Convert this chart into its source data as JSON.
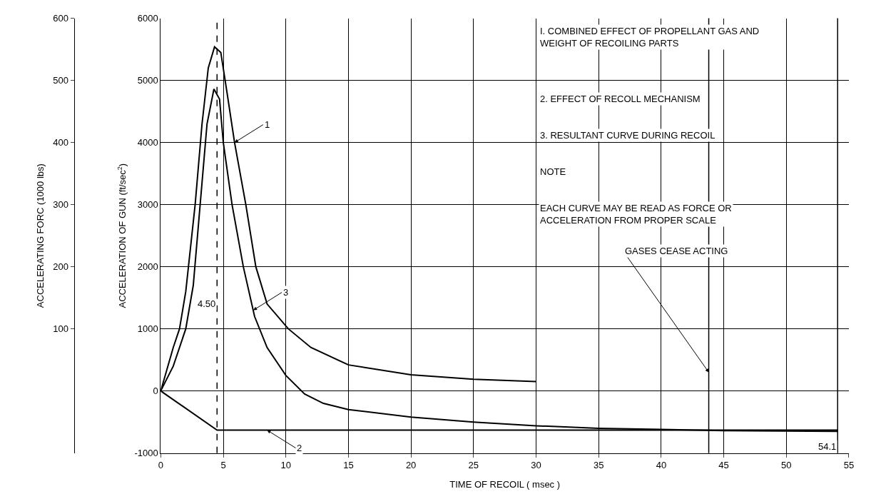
{
  "chart_data": {
    "type": "line",
    "xlabel": "TIME OF RECOIL ( msec )",
    "ylabel": "ACCELERATION OF GUN (ft/sec$^{2}$)",
    "y2label": "ACCELERATING FORC (1000 lbs)",
    "xlim": [
      0,
      55
    ],
    "xticks": [
      0,
      5,
      10,
      15,
      20,
      25,
      30,
      35,
      40,
      45,
      50,
      55
    ],
    "ylim": [
      -1000,
      6000
    ],
    "yticks": [
      -1000,
      0,
      1000,
      2000,
      3000,
      4000,
      5000,
      6000
    ],
    "y2lim": [
      -100,
      600
    ],
    "y2ticks": [
      100,
      200,
      300,
      400,
      500,
      600
    ],
    "grid": true,
    "marker": "none",
    "line_style": "solid",
    "series": [
      {
        "color": "#000000",
        "x": [
          0,
          0.5,
          1,
          1.5,
          2,
          2.75,
          3.3,
          3.8,
          4.3,
          4.8,
          5.3,
          5.9,
          6.8,
          7.6,
          8.5,
          10.2,
          12,
          15,
          20,
          25,
          30
        ],
        "values": [
          0,
          350,
          700,
          1000,
          1600,
          3000,
          4300,
          5200,
          5540,
          5450,
          4800,
          4000,
          3000,
          2000,
          1400,
          1000,
          700,
          420,
          260,
          190,
          150
        ]
      },
      {
        "color": "#000000",
        "x": [
          0,
          4.5,
          54.1
        ],
        "values": [
          0,
          -630,
          -630
        ]
      },
      {
        "color": "#000000",
        "x": [
          0,
          1,
          2,
          2.6,
          3.15,
          3.7,
          4.25,
          4.7,
          5,
          5.7,
          6.6,
          7.5,
          8.5,
          10,
          11.5,
          13,
          15,
          20,
          25,
          30,
          35,
          40,
          45,
          54.1
        ],
        "values": [
          0,
          400,
          1000,
          1700,
          3000,
          4300,
          4860,
          4700,
          4000,
          3000,
          2000,
          1200,
          700,
          250,
          -50,
          -200,
          -300,
          -420,
          -500,
          -560,
          -600,
          -620,
          -640,
          -650
        ]
      }
    ],
    "ref_lines": [
      {
        "axis": "x",
        "value": 4.5,
        "label": "4.50",
        "line_style": "dashed",
        "color": "#000000"
      },
      {
        "axis": "x",
        "value": 54.1,
        "label": "54.1",
        "line_style": "solid",
        "color": "#000000"
      },
      {
        "axis": "x",
        "value": 43.8,
        "line_style": "solid",
        "color": "#000000"
      }
    ],
    "annotations": [
      "I. COMBINED EFFECT OF PROPELLANT GAS AND\nWEIGHT OF RECOILING PARTS",
      "2. EFFECT OF RECOLL MECHANISM",
      "3. RESULTANT CURVE DURING RECOIL",
      "NOTE",
      "EACH CURVE MAY BE READ AS FORCE OR\nACCELERATION FROM PROPER SCALE",
      {
        "text": "1",
        "x": 5.9,
        "y": 4000
      },
      {
        "text": "2",
        "x": 8.5,
        "y": -630
      },
      {
        "text": "3",
        "x": 7.4,
        "y": 1300
      },
      {
        "text": "GASES CEASE ACTING",
        "x": 43.8,
        "y": 300
      }
    ]
  }
}
